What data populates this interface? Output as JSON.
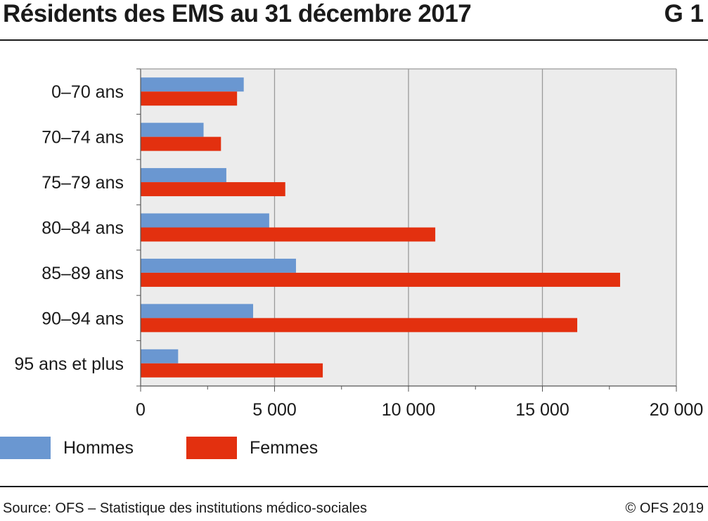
{
  "header": {
    "title": "Résidents des EMS au 31 décembre 2017",
    "code": "G 1"
  },
  "footer": {
    "source": "Source: OFS – Statistique des institutions médico-sociales",
    "copyright": "© OFS 2019"
  },
  "colors": {
    "hommes": "#6a97d1",
    "femmes": "#e3300f",
    "plot_bg": "#ececec",
    "grid": "#9a9a9a"
  },
  "chart_data": {
    "type": "bar",
    "orientation": "horizontal",
    "title": "Résidents des EMS au 31 décembre 2017",
    "categories": [
      "0–70 ans",
      "70–74 ans",
      "75–79 ans",
      "80–84 ans",
      "85–89 ans",
      "90–94 ans",
      "95 ans et plus"
    ],
    "series": [
      {
        "name": "Hommes",
        "values": [
          3850,
          2350,
          3200,
          4800,
          5800,
          4200,
          1400
        ]
      },
      {
        "name": "Femmes",
        "values": [
          3600,
          3000,
          5400,
          11000,
          17900,
          16300,
          6800
        ]
      }
    ],
    "xlim": [
      0,
      20000
    ],
    "xticks": [
      0,
      5000,
      10000,
      15000,
      20000
    ],
    "xtick_labels": [
      "0",
      "5 000",
      "10 000",
      "15 000",
      "20 000"
    ],
    "grid": true,
    "legend_position": "bottom-left"
  }
}
